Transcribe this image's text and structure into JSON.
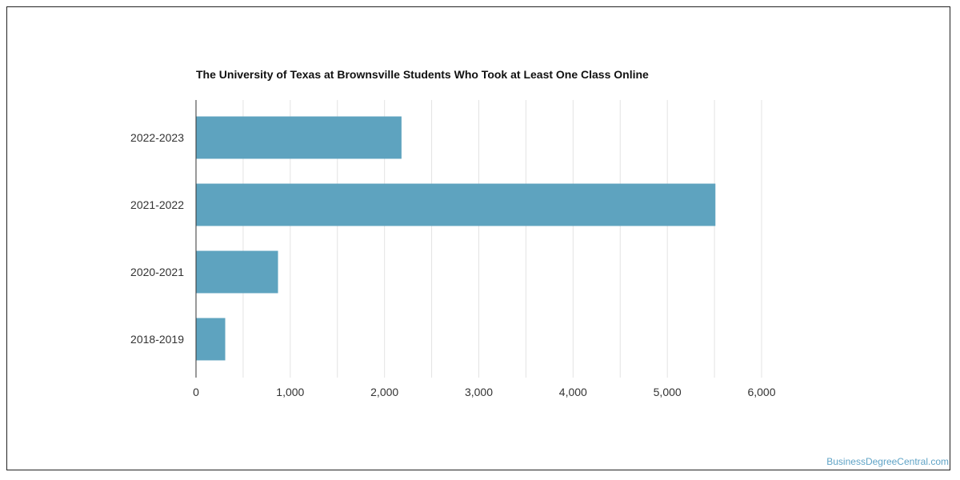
{
  "chart_data": {
    "type": "bar",
    "orientation": "horizontal",
    "title": "The University of Texas at Brownsville Students Who Took at Least One Class Online",
    "categories": [
      "2022-2023",
      "2021-2022",
      "2020-2021",
      "2018-2019"
    ],
    "values": [
      2180,
      5510,
      870,
      310
    ],
    "xlim": [
      0,
      6000
    ],
    "x_ticks": [
      0,
      1000,
      2000,
      3000,
      4000,
      5000,
      6000
    ],
    "x_tick_labels": [
      "0",
      "1,000",
      "2,000",
      "3,000",
      "4,000",
      "5,000",
      "6,000"
    ],
    "xlabel": "",
    "ylabel": "",
    "grid": true,
    "bar_color": "#5ea3bf"
  },
  "watermark": "BusinessDegreeCentral.com"
}
